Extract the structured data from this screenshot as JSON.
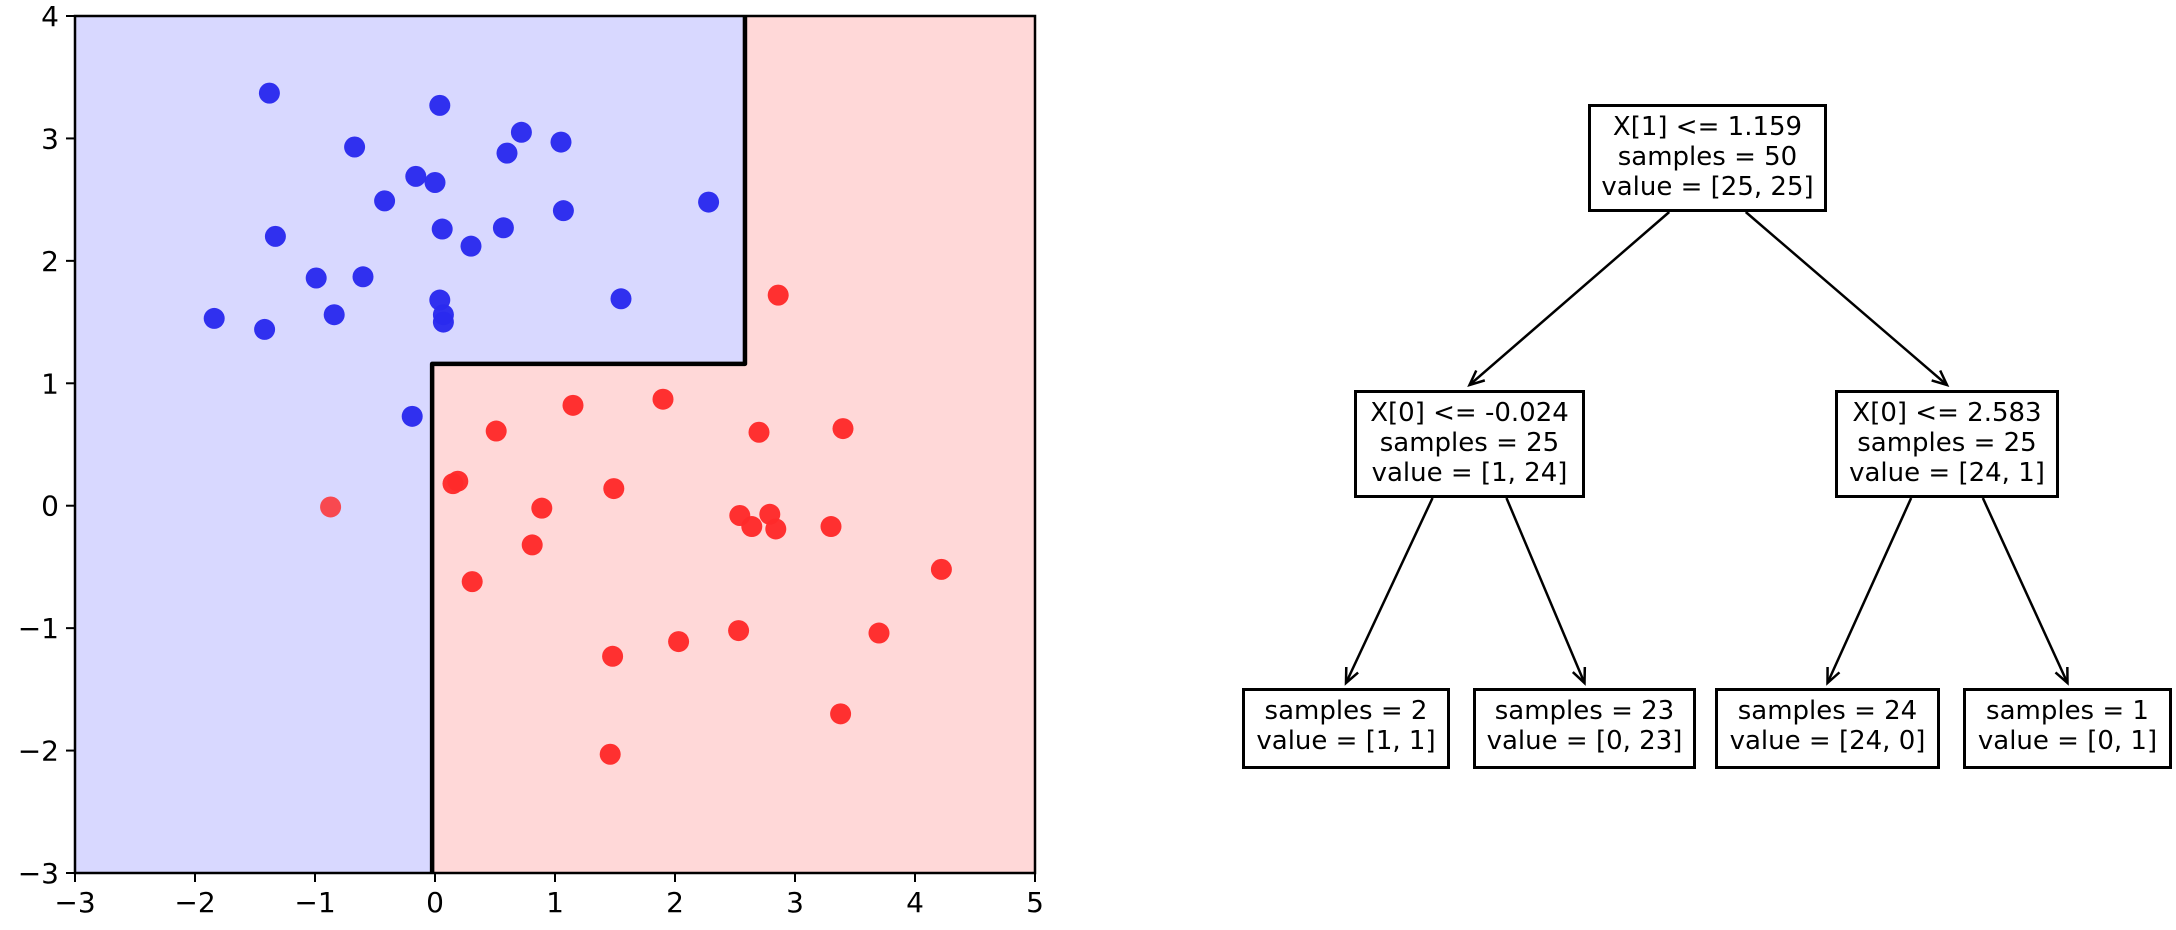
{
  "chart_data": [
    {
      "type": "scatter",
      "title": "",
      "xlabel": "",
      "ylabel": "",
      "xlim": [
        -3,
        5
      ],
      "ylim": [
        -3,
        4
      ],
      "xticks": [
        -3,
        -2,
        -1,
        0,
        1,
        2,
        3,
        4,
        5
      ],
      "yticks": [
        -3,
        -2,
        -1,
        0,
        1,
        2,
        3,
        4
      ],
      "xtick_labels": [
        "−3",
        "−2",
        "−1",
        "0",
        "1",
        "2",
        "3",
        "4",
        "5"
      ],
      "ytick_labels": [
        "−3",
        "−2",
        "−1",
        "0",
        "1",
        "2",
        "3",
        "4"
      ],
      "grid": false,
      "regions": [
        {
          "class": 0,
          "color": "#d8d8ff",
          "rule": "x < -0.024 or (x <= 2.583 and y > 1.159)"
        },
        {
          "class": 1,
          "color": "#ffd8d8",
          "rule": "otherwise"
        }
      ],
      "decision_boundary": {
        "color": "#000000",
        "points": [
          [
            -0.024,
            -3
          ],
          [
            -0.024,
            1.159
          ],
          [
            2.583,
            1.159
          ],
          [
            2.583,
            4
          ]
        ]
      },
      "series": [
        {
          "class": 0,
          "color": "#2a2aee",
          "points": [
            [
              -1.38,
              3.37
            ],
            [
              0.04,
              3.27
            ],
            [
              0.72,
              3.05
            ],
            [
              1.05,
              2.97
            ],
            [
              -0.67,
              2.93
            ],
            [
              0.6,
              2.88
            ],
            [
              -0.16,
              2.69
            ],
            [
              0.0,
              2.64
            ],
            [
              -0.42,
              2.49
            ],
            [
              2.28,
              2.48
            ],
            [
              1.07,
              2.41
            ],
            [
              0.06,
              2.26
            ],
            [
              0.57,
              2.27
            ],
            [
              -1.33,
              2.2
            ],
            [
              0.3,
              2.12
            ],
            [
              -0.99,
              1.86
            ],
            [
              -0.6,
              1.87
            ],
            [
              1.55,
              1.69
            ],
            [
              0.04,
              1.68
            ],
            [
              -0.84,
              1.56
            ],
            [
              0.07,
              1.56
            ],
            [
              -1.84,
              1.53
            ],
            [
              0.07,
              1.5
            ],
            [
              -1.42,
              1.44
            ],
            [
              -0.19,
              0.73
            ]
          ]
        },
        {
          "class": 1,
          "color": "#ff2a2a",
          "points": [
            [
              2.86,
              1.72
            ],
            [
              1.9,
              0.87
            ],
            [
              1.15,
              0.82
            ],
            [
              3.4,
              0.63
            ],
            [
              0.51,
              0.61
            ],
            [
              2.7,
              0.6
            ],
            [
              0.19,
              0.2
            ],
            [
              0.15,
              0.18
            ],
            [
              1.49,
              0.14
            ],
            [
              0.89,
              -0.02
            ],
            [
              2.54,
              -0.08
            ],
            [
              2.79,
              -0.07
            ],
            [
              2.64,
              -0.17
            ],
            [
              2.84,
              -0.19
            ],
            [
              3.3,
              -0.17
            ],
            [
              0.81,
              -0.32
            ],
            [
              4.22,
              -0.52
            ],
            [
              0.31,
              -0.62
            ],
            [
              2.53,
              -1.02
            ],
            [
              3.7,
              -1.04
            ],
            [
              2.03,
              -1.11
            ],
            [
              1.48,
              -1.23
            ],
            [
              3.38,
              -1.7
            ],
            [
              1.46,
              -2.03
            ],
            [
              -0.87,
              -0.01
            ]
          ]
        }
      ]
    },
    {
      "type": "tree",
      "nodes": [
        {
          "id": "root",
          "lines": [
            "X[1] <= 1.159",
            "samples = 50",
            "value = [25, 25]"
          ]
        },
        {
          "id": "left",
          "lines": [
            "X[0] <= -0.024",
            "samples = 25",
            "value = [1, 24]"
          ]
        },
        {
          "id": "right",
          "lines": [
            "X[0] <= 2.583",
            "samples = 25",
            "value = [24, 1]"
          ]
        },
        {
          "id": "ll",
          "lines": [
            "samples = 2",
            "value = [1, 1]"
          ]
        },
        {
          "id": "lr",
          "lines": [
            "samples = 23",
            "value = [0, 23]"
          ]
        },
        {
          "id": "rl",
          "lines": [
            "samples = 24",
            "value = [24, 0]"
          ]
        },
        {
          "id": "rr",
          "lines": [
            "samples = 1",
            "value = [0, 1]"
          ]
        }
      ],
      "edges": [
        [
          "root",
          "left"
        ],
        [
          "root",
          "right"
        ],
        [
          "left",
          "ll"
        ],
        [
          "left",
          "lr"
        ],
        [
          "right",
          "rl"
        ],
        [
          "right",
          "rr"
        ]
      ]
    }
  ]
}
